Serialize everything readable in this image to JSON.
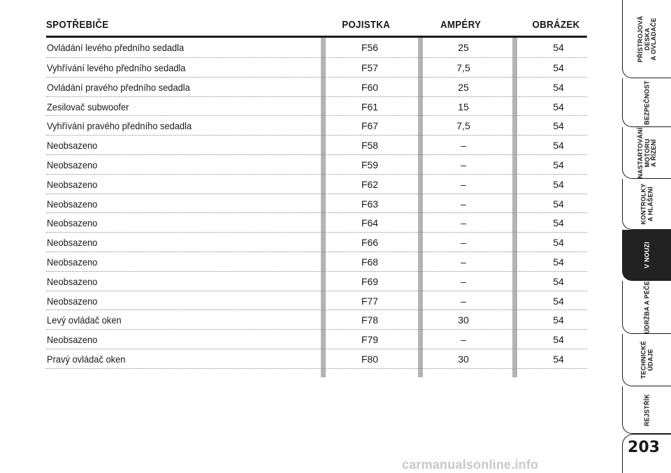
{
  "table": {
    "headers": {
      "name": "SPOTŘEBIČE",
      "fuse": "POJISTKA",
      "amp": "AMPÉRY",
      "fig": "OBRÁZEK"
    },
    "rows": [
      {
        "name": "Ovládání levého předního sedadla",
        "fuse": "F56",
        "amp": "25",
        "fig": "54"
      },
      {
        "name": "Vyhřívání levého předního sedadla",
        "fuse": "F57",
        "amp": "7,5",
        "fig": "54"
      },
      {
        "name": "Ovládání pravého předního sedadla",
        "fuse": "F60",
        "amp": "25",
        "fig": "54"
      },
      {
        "name": "Zesilovač subwoofer",
        "fuse": "F61",
        "amp": "15",
        "fig": "54"
      },
      {
        "name": "Vyhřívání pravého předního sedadla",
        "fuse": "F67",
        "amp": "7,5",
        "fig": "54"
      },
      {
        "name": "Neobsazeno",
        "fuse": "F58",
        "amp": "–",
        "fig": "54"
      },
      {
        "name": "Neobsazeno",
        "fuse": "F59",
        "amp": "–",
        "fig": "54"
      },
      {
        "name": "Neobsazeno",
        "fuse": "F62",
        "amp": "–",
        "fig": "54"
      },
      {
        "name": "Neobsazeno",
        "fuse": "F63",
        "amp": "–",
        "fig": "54"
      },
      {
        "name": "Neobsazeno",
        "fuse": "F64",
        "amp": "–",
        "fig": "54"
      },
      {
        "name": "Neobsazeno",
        "fuse": "F66",
        "amp": "–",
        "fig": "54"
      },
      {
        "name": "Neobsazeno",
        "fuse": "F68",
        "amp": "–",
        "fig": "54"
      },
      {
        "name": "Neobsazeno",
        "fuse": "F69",
        "amp": "–",
        "fig": "54"
      },
      {
        "name": "Neobsazeno",
        "fuse": "F77",
        "amp": "–",
        "fig": "54"
      },
      {
        "name": "Levý ovládač oken",
        "fuse": "F78",
        "amp": "30",
        "fig": "54"
      },
      {
        "name": "Neobsazeno",
        "fuse": "F79",
        "amp": "–",
        "fig": "54"
      },
      {
        "name": "Pravý ovládač oken",
        "fuse": "F80",
        "amp": "30",
        "fig": "54"
      }
    ]
  },
  "tabs": [
    {
      "label": "PŘÍSTROJOVÁ\nDESKA\nA OVLADAČE",
      "active": false
    },
    {
      "label": "BEZPEČNOST",
      "active": false
    },
    {
      "label": "NASTARTOVÁNÍ\nMOTORU\nA ŘÍZENÍ",
      "active": false
    },
    {
      "label": "KONTROLKY\nA HLÁŠENÍ",
      "active": false
    },
    {
      "label": "V NOUZI",
      "active": true
    },
    {
      "label": "ÚDRŽBA A PÉČE",
      "active": false
    },
    {
      "label": "TECHNICKÉ\nÚDAJE",
      "active": false
    },
    {
      "label": "REJSTŘÍK",
      "active": false
    }
  ],
  "page_number": "203",
  "watermark": "carmanualsonline.info",
  "colors": {
    "text": "#1a1a1a",
    "separator": "#b4b4b4",
    "active_tab": "#222222",
    "watermark": "#c8c8c8"
  }
}
